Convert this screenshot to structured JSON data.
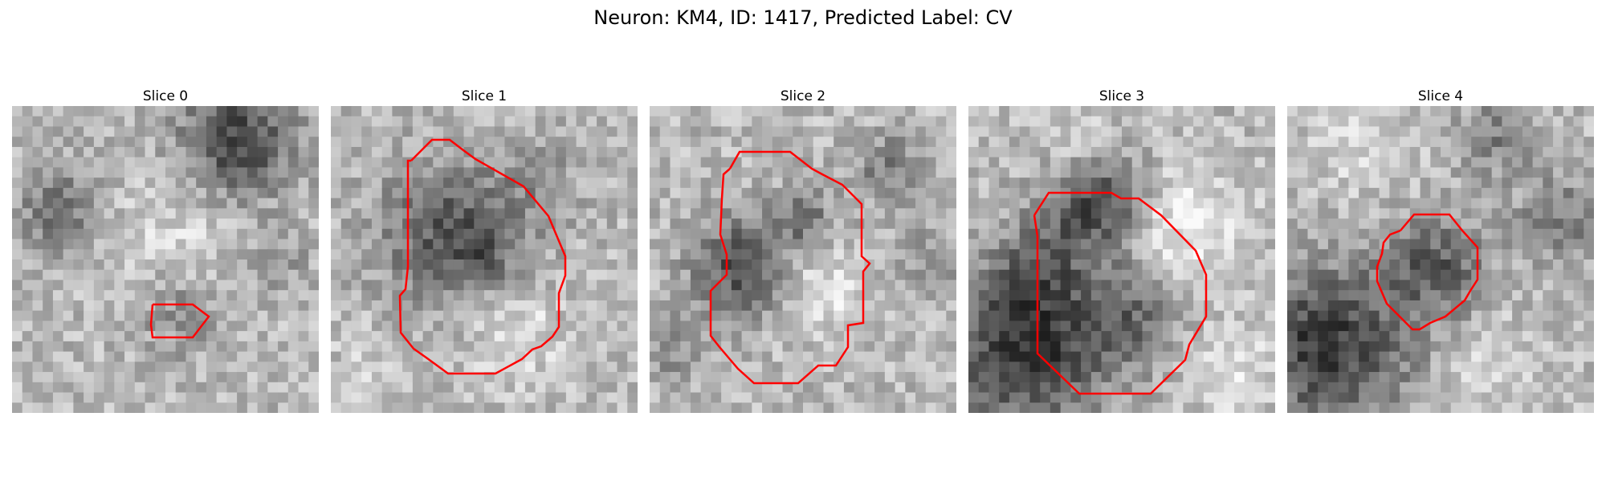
{
  "figure": {
    "title": "Neuron: KM4, ID: 1417, Predicted Label: CV"
  },
  "panels": [
    {
      "title": "Slice 0"
    },
    {
      "title": "Slice 1"
    },
    {
      "title": "Slice 2"
    },
    {
      "title": "Slice 3"
    },
    {
      "title": "Slice 4"
    }
  ],
  "colors": {
    "contour": "#ff0000",
    "background": "#ffffff"
  },
  "colormap": "gray",
  "grid_size": 30
}
